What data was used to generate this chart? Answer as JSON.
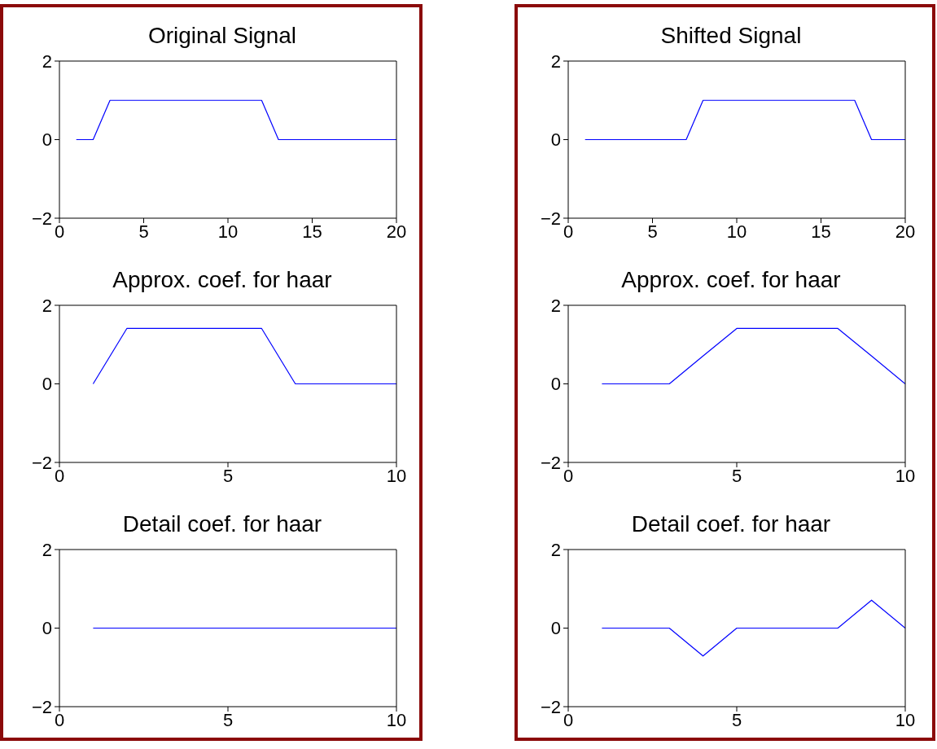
{
  "chart_data": [
    {
      "type": "line",
      "title": "Original Signal",
      "x": [
        1,
        2,
        3,
        4,
        5,
        6,
        7,
        8,
        9,
        10,
        11,
        12,
        13,
        14,
        15,
        16,
        17,
        18,
        19,
        20
      ],
      "values": [
        0,
        0,
        1,
        1,
        1,
        1,
        1,
        1,
        1,
        1,
        1,
        1,
        0,
        0,
        0,
        0,
        0,
        0,
        0,
        0
      ],
      "color": "#0000ff",
      "xlim": [
        0,
        20
      ],
      "xticks": [
        0,
        5,
        10,
        15,
        20
      ],
      "ylim": [
        -2,
        2
      ],
      "yticks": [
        {
          "value": -2,
          "label": "−2"
        },
        {
          "value": 0,
          "label": "0"
        },
        {
          "value": 2,
          "label": "2"
        }
      ]
    },
    {
      "type": "line",
      "title": "Shifted Signal",
      "x": [
        1,
        2,
        3,
        4,
        5,
        6,
        7,
        8,
        9,
        10,
        11,
        12,
        13,
        14,
        15,
        16,
        17,
        18,
        19,
        20
      ],
      "values": [
        0,
        0,
        0,
        0,
        0,
        0,
        0,
        1,
        1,
        1,
        1,
        1,
        1,
        1,
        1,
        1,
        1,
        0,
        0,
        0
      ],
      "color": "#0000ff",
      "xlim": [
        0,
        20
      ],
      "xticks": [
        0,
        5,
        10,
        15,
        20
      ],
      "ylim": [
        -2,
        2
      ],
      "yticks": [
        {
          "value": -2,
          "label": "−2"
        },
        {
          "value": 0,
          "label": "0"
        },
        {
          "value": 2,
          "label": "2"
        }
      ]
    },
    {
      "type": "line",
      "title": "Approx. coef. for haar",
      "x": [
        1,
        2,
        3,
        4,
        5,
        6,
        7,
        8,
        9,
        10
      ],
      "values": [
        0,
        1.41,
        1.41,
        1.41,
        1.41,
        1.41,
        0,
        0,
        0,
        0
      ],
      "color": "#0000ff",
      "xlim": [
        0,
        10
      ],
      "xticks": [
        0,
        5,
        10
      ],
      "ylim": [
        -2,
        2
      ],
      "yticks": [
        {
          "value": -2,
          "label": "−2"
        },
        {
          "value": 0,
          "label": "0"
        },
        {
          "value": 2,
          "label": "2"
        }
      ]
    },
    {
      "type": "line",
      "title": "Approx. coef. for haar",
      "x": [
        1,
        2,
        3,
        4,
        5,
        6,
        7,
        8,
        9,
        10
      ],
      "values": [
        0,
        0,
        0,
        0.71,
        1.41,
        1.41,
        1.41,
        1.41,
        0.71,
        0
      ],
      "color": "#0000ff",
      "xlim": [
        0,
        10
      ],
      "xticks": [
        0,
        5,
        10
      ],
      "ylim": [
        -2,
        2
      ],
      "yticks": [
        {
          "value": -2,
          "label": "−2"
        },
        {
          "value": 0,
          "label": "0"
        },
        {
          "value": 2,
          "label": "2"
        }
      ]
    },
    {
      "type": "line",
      "title": "Detail coef. for haar",
      "x": [
        1,
        2,
        3,
        4,
        5,
        6,
        7,
        8,
        9,
        10
      ],
      "values": [
        0,
        0,
        0,
        0,
        0,
        0,
        0,
        0,
        0,
        0
      ],
      "color": "#0000ff",
      "xlim": [
        0,
        10
      ],
      "xticks": [
        0,
        5,
        10
      ],
      "ylim": [
        -2,
        2
      ],
      "yticks": [
        {
          "value": -2,
          "label": "−2"
        },
        {
          "value": 0,
          "label": "0"
        },
        {
          "value": 2,
          "label": "2"
        }
      ]
    },
    {
      "type": "line",
      "title": "Detail coef. for haar",
      "x": [
        1,
        2,
        3,
        4,
        5,
        6,
        7,
        8,
        9,
        10
      ],
      "values": [
        0,
        0,
        0,
        -0.71,
        0,
        0,
        0,
        0,
        0.71,
        0
      ],
      "color": "#0000ff",
      "xlim": [
        0,
        10
      ],
      "xticks": [
        0,
        5,
        10
      ],
      "ylim": [
        -2,
        2
      ],
      "yticks": [
        {
          "value": -2,
          "label": "−2"
        },
        {
          "value": 0,
          "label": "0"
        },
        {
          "value": 2,
          "label": "2"
        }
      ]
    }
  ]
}
